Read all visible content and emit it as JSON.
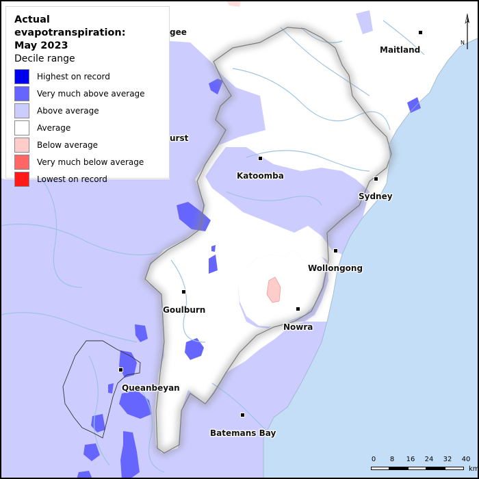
{
  "legend": {
    "title_line1": "Actual evapotranspiration:",
    "title_line2": "May 2023",
    "subtitle": "Decile range",
    "items": [
      {
        "label": "Highest on record",
        "color": "#0000ee"
      },
      {
        "label": "Very much above average",
        "color": "#6666ff"
      },
      {
        "label": "Above average",
        "color": "#ccccff"
      },
      {
        "label": "Average",
        "color": "#ffffff"
      },
      {
        "label": "Below average",
        "color": "#ffcccc"
      },
      {
        "label": "Very much below average",
        "color": "#ff6666"
      },
      {
        "label": "Lowest on record",
        "color": "#ff1a1a"
      }
    ]
  },
  "places": {
    "maitland": "Maitland",
    "katoomba": "Katoomba",
    "sydney": "Sydney",
    "wollongong": "Wollongong",
    "goulburn": "Goulburn",
    "nowra": "Nowra",
    "queanbeyan": "Queanbeyan",
    "batemans_bay": "Batemans Bay",
    "bathurst_partial": "urst",
    "mudgee_partial": "gee"
  },
  "north_arrow": {
    "label": "N"
  },
  "scale": {
    "ticks": [
      "0",
      "8",
      "16",
      "24",
      "32",
      "40"
    ],
    "units": "km"
  },
  "colors": {
    "ocean": "#c3def6",
    "land": "#ffffff",
    "rivers": "#9ec3e0",
    "above_average": "#ccccff",
    "very_much_above": "#6666ff",
    "below_average": "#ffcccc"
  }
}
